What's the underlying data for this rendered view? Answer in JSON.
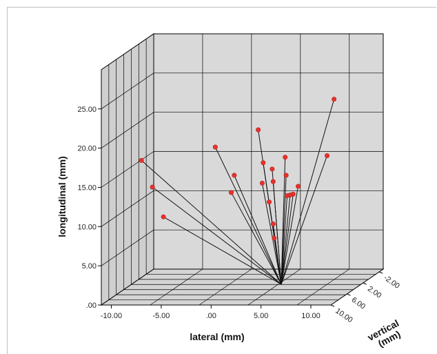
{
  "chart_data": {
    "type": "scatter",
    "subtype": "3d-scatter-with-spikes-to-origin",
    "title": "",
    "xlabel": "lateral (mm)",
    "ylabel": "longitudinal (mm)",
    "zlabel": "vertical\n(mm)",
    "x_ticks": [
      "-10.00",
      "-5.00",
      ".00",
      "5.00",
      "10.00"
    ],
    "y_ticks": [
      ".00",
      "5.00",
      "10.00",
      "15.00",
      "20.00",
      "25.00"
    ],
    "z_ticks": [
      "-2.00",
      "2.00",
      "6.00",
      "10.00"
    ],
    "xlim": [
      -11,
      12
    ],
    "ylim": [
      0,
      30
    ],
    "zlim": [
      -3,
      10
    ],
    "grid": true,
    "point_color": "#e8322d",
    "spike_origin": {
      "x": 4.0,
      "y": 0,
      "z": 2.5
    },
    "points": [
      {
        "x": -9.2,
        "y": 16.5,
        "z": 4.5
      },
      {
        "x": -8.1,
        "y": 13.1,
        "z": 4.5
      },
      {
        "x": -7.0,
        "y": 9.3,
        "z": 4.5
      },
      {
        "x": -1.8,
        "y": 18.2,
        "z": 4.5
      },
      {
        "x": 0.1,
        "y": 14.6,
        "z": 4.5
      },
      {
        "x": -0.2,
        "y": 12.4,
        "z": 4.5
      },
      {
        "x": 2.5,
        "y": 20.4,
        "z": 4.5
      },
      {
        "x": 3.0,
        "y": 16.2,
        "z": 4.5
      },
      {
        "x": 2.9,
        "y": 13.6,
        "z": 4.5
      },
      {
        "x": 3.6,
        "y": 11.2,
        "z": 4.5
      },
      {
        "x": 3.9,
        "y": 15.4,
        "z": 4.5
      },
      {
        "x": 4.0,
        "y": 13.8,
        "z": 4.5
      },
      {
        "x": 4.0,
        "y": 8.4,
        "z": 4.5
      },
      {
        "x": 4.1,
        "y": 6.6,
        "z": 4.5
      },
      {
        "x": 5.2,
        "y": 16.9,
        "z": 4.5
      },
      {
        "x": 5.3,
        "y": 14.6,
        "z": 4.5
      },
      {
        "x": 5.4,
        "y": 12.0,
        "z": 4.5
      },
      {
        "x": 5.7,
        "y": 12.1,
        "z": 4.5
      },
      {
        "x": 6.0,
        "y": 12.2,
        "z": 4.5
      },
      {
        "x": 6.5,
        "y": 13.2,
        "z": 4.5
      },
      {
        "x": 9.4,
        "y": 17.1,
        "z": 4.5
      },
      {
        "x": 10.1,
        "y": 24.3,
        "z": 4.5
      }
    ]
  }
}
